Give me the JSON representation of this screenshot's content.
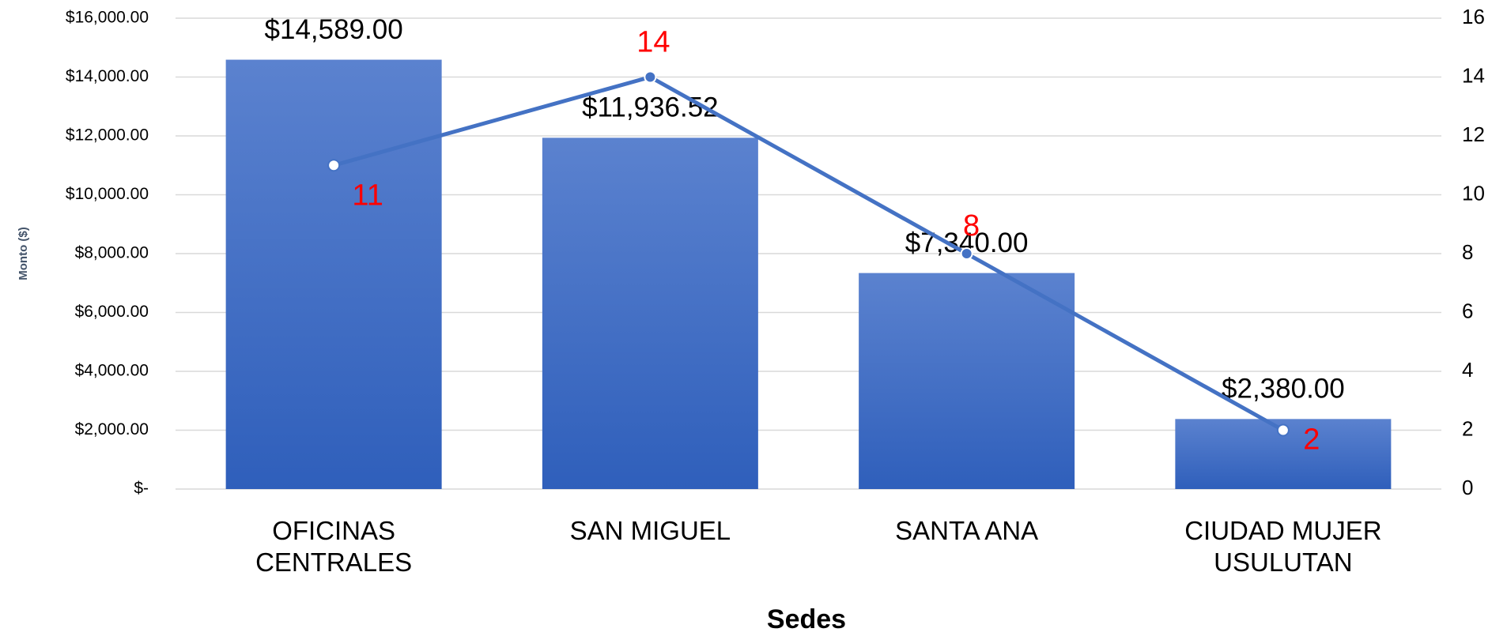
{
  "chart_data": {
    "type": "bar",
    "x_label": "Sedes",
    "y_label": "Monto ($)",
    "categories": [
      "OFICINAS CENTRALES",
      "SAN MIGUEL",
      "SANTA ANA",
      "CIUDAD MUJER USULUTAN"
    ],
    "series": [
      {
        "type": "bar",
        "color": "#4472c4",
        "values": [
          14589,
          11936.52,
          7340,
          2380
        ],
        "value_labels": [
          "$14,589.00",
          "$11,936.52",
          "$7,340.00",
          "$2,380.00"
        ]
      },
      {
        "type": "line",
        "axis": "y2",
        "color": "#4472c4",
        "label_color": "#ff0000",
        "values": [
          11,
          14,
          8,
          2
        ]
      }
    ],
    "ylim": [
      0,
      16000
    ],
    "yticks": [
      {
        "value": 0,
        "label": "$-"
      },
      {
        "value": 2000,
        "label": "$2,000.00"
      },
      {
        "value": 4000,
        "label": "$4,000.00"
      },
      {
        "value": 6000,
        "label": "$6,000.00"
      },
      {
        "value": 8000,
        "label": "$8,000.00"
      },
      {
        "value": 10000,
        "label": "$10,000.00"
      },
      {
        "value": 12000,
        "label": "$12,000.00"
      },
      {
        "value": 14000,
        "label": "$14,000.00"
      },
      {
        "value": 16000,
        "label": "$16,000.00"
      }
    ],
    "y2lim": [
      0,
      16
    ],
    "y2ticks": [
      0,
      2,
      4,
      6,
      8,
      10,
      12,
      14,
      16
    ],
    "grid": true
  }
}
